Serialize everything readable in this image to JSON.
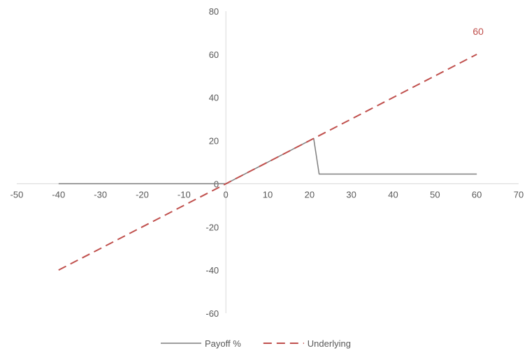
{
  "chart_data": {
    "type": "line",
    "title": "",
    "xlabel": "",
    "ylabel": "",
    "xlim": [
      -50,
      70
    ],
    "ylim": [
      -60,
      80
    ],
    "grid": false,
    "legend_position": "bottom",
    "x_ticks": [
      -50,
      -40,
      -30,
      -20,
      -10,
      0,
      10,
      20,
      30,
      40,
      50,
      60,
      70
    ],
    "y_ticks": [
      -60,
      -40,
      -20,
      0,
      20,
      40,
      60,
      80
    ],
    "series": [
      {
        "name": "Payoff %",
        "color": "#7f7f7f",
        "dash": "solid",
        "x": [
          -40,
          0,
          21,
          22.3,
          60
        ],
        "y": [
          0,
          0,
          21,
          4.5,
          4.5
        ]
      },
      {
        "name": "Underlying",
        "color": "#c0504d",
        "dash": "dashed",
        "x": [
          -40,
          60
        ],
        "y": [
          -40,
          60
        ]
      }
    ],
    "data_labels": [
      {
        "series": "Underlying",
        "x": 60,
        "y": 60,
        "text": "60",
        "color": "#c0504d"
      }
    ]
  }
}
